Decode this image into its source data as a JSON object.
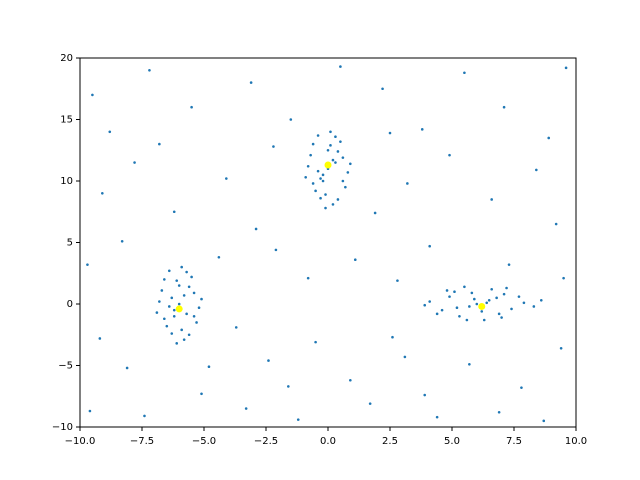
{
  "chart_data": {
    "type": "scatter",
    "xlim": [
      -10,
      10
    ],
    "ylim": [
      -10,
      20
    ],
    "xticks": [
      {
        "value": -10,
        "label": "−10.0"
      },
      {
        "value": -7.5,
        "label": "−7.5"
      },
      {
        "value": -5,
        "label": "−5.0"
      },
      {
        "value": -2.5,
        "label": "−2.5"
      },
      {
        "value": 0,
        "label": "0.0"
      },
      2.5,
      {
        "value": 5,
        "label": "5.0"
      },
      7.5,
      {
        "value": 10,
        "label": "10.0"
      }
    ],
    "yticks": [
      {
        "value": -10,
        "label": "−10"
      },
      {
        "value": -5,
        "label": "−5"
      },
      0,
      5,
      10,
      15,
      20
    ],
    "series": [
      {
        "color": "#1f77b4",
        "size": 1.3,
        "x": [
          -9.5,
          -8.8,
          -7.2,
          -5.5,
          -3.1,
          -1.5,
          2.2,
          3.8,
          5.5,
          7.1,
          8.9,
          9.6,
          -9.1,
          -7.8,
          -6.2,
          -4.1,
          -2.9,
          1.9,
          3.2,
          4.9,
          6.6,
          8.4,
          9.2,
          -9.7,
          -8.3,
          -4.4,
          -2.1,
          -0.8,
          1.1,
          2.8,
          4.1,
          7.3,
          9.5,
          -9.2,
          -8.1,
          -3.7,
          -2.4,
          -0.5,
          0.9,
          2.6,
          3.9,
          5.7,
          7.8,
          9.4,
          -9.6,
          -7.4,
          -5.1,
          -3.3,
          -1.2,
          1.7,
          4.4,
          6.9,
          8.7,
          -6.8,
          0.5,
          -2.2,
          2.5,
          -4.8,
          3.1,
          -1.6,
          -6.3,
          -5.7,
          -6.1,
          -5.9,
          -6.6,
          -5.4,
          -6.8,
          -5.2,
          -6.4,
          -5.8,
          -6.0,
          -6.2,
          -5.6,
          -6.5,
          -5.5,
          -6.9,
          -5.1,
          -6.1,
          -5.9,
          -6.7,
          -5.3,
          -6.3,
          -5.7,
          -6.0,
          -6.2,
          -5.8,
          -6.4,
          -5.6,
          -6.6,
          -5.4,
          0.3,
          -0.3,
          0.1,
          -0.1,
          -0.6,
          0.6,
          -0.8,
          0.8,
          -0.4,
          0.2,
          0,
          -0.2,
          0.4,
          -0.5,
          0.5,
          -0.9,
          0.9,
          -0.1,
          0.1,
          -0.7,
          0.7,
          -0.3,
          0.3,
          0,
          -0.2,
          0.2,
          -0.4,
          0.4,
          -0.6,
          0.6,
          6.5,
          5.2,
          7.1,
          4.6,
          5.8,
          6.9,
          4.1,
          7.9,
          5.5,
          6.3,
          6,
          5.7,
          6.8,
          4.9,
          7.4,
          3.9,
          8.3,
          5.1,
          6.6,
          5.3,
          7.7,
          4.4,
          8.6,
          6.2,
          5.9,
          7,
          4.8,
          6.4,
          5.6,
          7.2
        ],
        "y": [
          17,
          14,
          19,
          16,
          18,
          15,
          17.5,
          14.2,
          18.8,
          16,
          13.5,
          19.2,
          9,
          11.5,
          7.5,
          10.2,
          6.1,
          7.4,
          9.8,
          12.1,
          8.5,
          10.9,
          6.5,
          3.2,
          5.1,
          3.8,
          4.4,
          2.1,
          3.6,
          1.9,
          4.7,
          3.2,
          2.1,
          -2.8,
          -5.2,
          -1.9,
          -4.6,
          -3.1,
          -6.2,
          -2.7,
          -7.4,
          -4.9,
          -6.8,
          -3.6,
          -8.7,
          -9.1,
          -7.3,
          -8.5,
          -9.4,
          -8.1,
          -9.2,
          -8.8,
          -9.5,
          13,
          19.3,
          12.8,
          13.9,
          -5.1,
          -4.3,
          -6.7,
          0.5,
          -0.8,
          1.9,
          -2.1,
          -1.2,
          0.9,
          0.2,
          -0.3,
          2.7,
          -2.9,
          0.0,
          -0.5,
          1.4,
          -1.8,
          2.2,
          -0.7,
          0.4,
          -3.2,
          3.0,
          1.1,
          -1.5,
          -2.4,
          2.6,
          1.5,
          -1.0,
          0.7,
          -0.2,
          -2.5,
          2.0,
          -1.0,
          11.5,
          10.2,
          12.9,
          8.9,
          9.8,
          11.9,
          11.2,
          10.7,
          13.7,
          8.1,
          11,
          10.5,
          12.4,
          9.2,
          13.2,
          10.3,
          11.4,
          7.8,
          14,
          12.1,
          9.5,
          8.6,
          13.6,
          12.5,
          10,
          11.7,
          10.8,
          8.5,
          13,
          10,
          0.3,
          -0.3,
          0.8,
          -0.5,
          0.9,
          -0.8,
          0.2,
          0.1,
          1.4,
          -1.3,
          0,
          -0.2,
          0.5,
          0.6,
          -0.4,
          -0.1,
          -0.2,
          1,
          1.2,
          -1,
          0.6,
          -0.8,
          0.3,
          -0.6,
          0.4,
          -1.1,
          1.1,
          0.1,
          -1.3,
          1.3
        ]
      },
      {
        "color": "#ffff00",
        "size": 3.5,
        "x": [
          -6,
          0,
          6.2
        ],
        "y": [
          -0.4,
          11.3,
          -0.2
        ]
      }
    ]
  }
}
